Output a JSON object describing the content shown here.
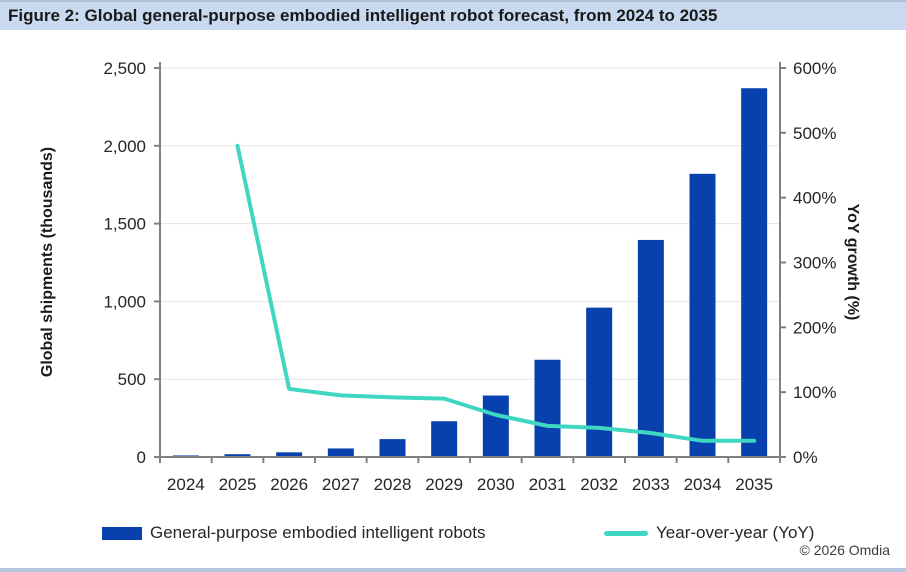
{
  "header": {
    "title": "Figure 2: Global general-purpose embodied intelligent robot forecast, from 2024 to 2035"
  },
  "footer": {
    "source": "© 2026 Omdia"
  },
  "colors": {
    "bar": "#0841ae",
    "line": "#3fd6c2",
    "axis": "#808080",
    "grid": "#e5e5e5",
    "tick_text": "#262626",
    "title_bar_bg": "#c9daf0"
  },
  "chart_data": {
    "type": "bar+line",
    "title": "Figure 2: Global general-purpose embodied intelligent robot forecast, from 2024 to 2035",
    "categories": [
      "2024",
      "2025",
      "2026",
      "2027",
      "2028",
      "2029",
      "2030",
      "2031",
      "2032",
      "2033",
      "2034",
      "2035"
    ],
    "series": [
      {
        "name": "General-purpose embodied intelligent robots",
        "type": "bar",
        "axis": "left",
        "values": [
          10,
          18,
          30,
          55,
          115,
          230,
          395,
          625,
          960,
          1395,
          1820,
          2370
        ],
        "color": "#0841ae"
      },
      {
        "name": "Year-over-year (YoY)",
        "type": "line",
        "axis": "right",
        "values": [
          null,
          480,
          105,
          95,
          92,
          90,
          65,
          48,
          45,
          37,
          25,
          25
        ],
        "color": "#3fd6c2"
      }
    ],
    "y_axis_left": {
      "title": "Global shipments (thousands)",
      "max": 2500,
      "ticks": [
        0,
        500,
        1000,
        1500,
        2000,
        2500
      ],
      "labels": [
        "0",
        "500",
        "1,000",
        "1,500",
        "2,000",
        "2,500"
      ]
    },
    "y_axis_right": {
      "title": "YoY growth (%)",
      "max": 600,
      "ticks": [
        0,
        100,
        200,
        300,
        400,
        500,
        600
      ],
      "labels": [
        "0%",
        "100%",
        "200%",
        "300%",
        "400%",
        "500%",
        "600%"
      ]
    },
    "grid": "horizontal-left-axis",
    "legend_position": "bottom",
    "source": "© 2026 Omdia"
  }
}
